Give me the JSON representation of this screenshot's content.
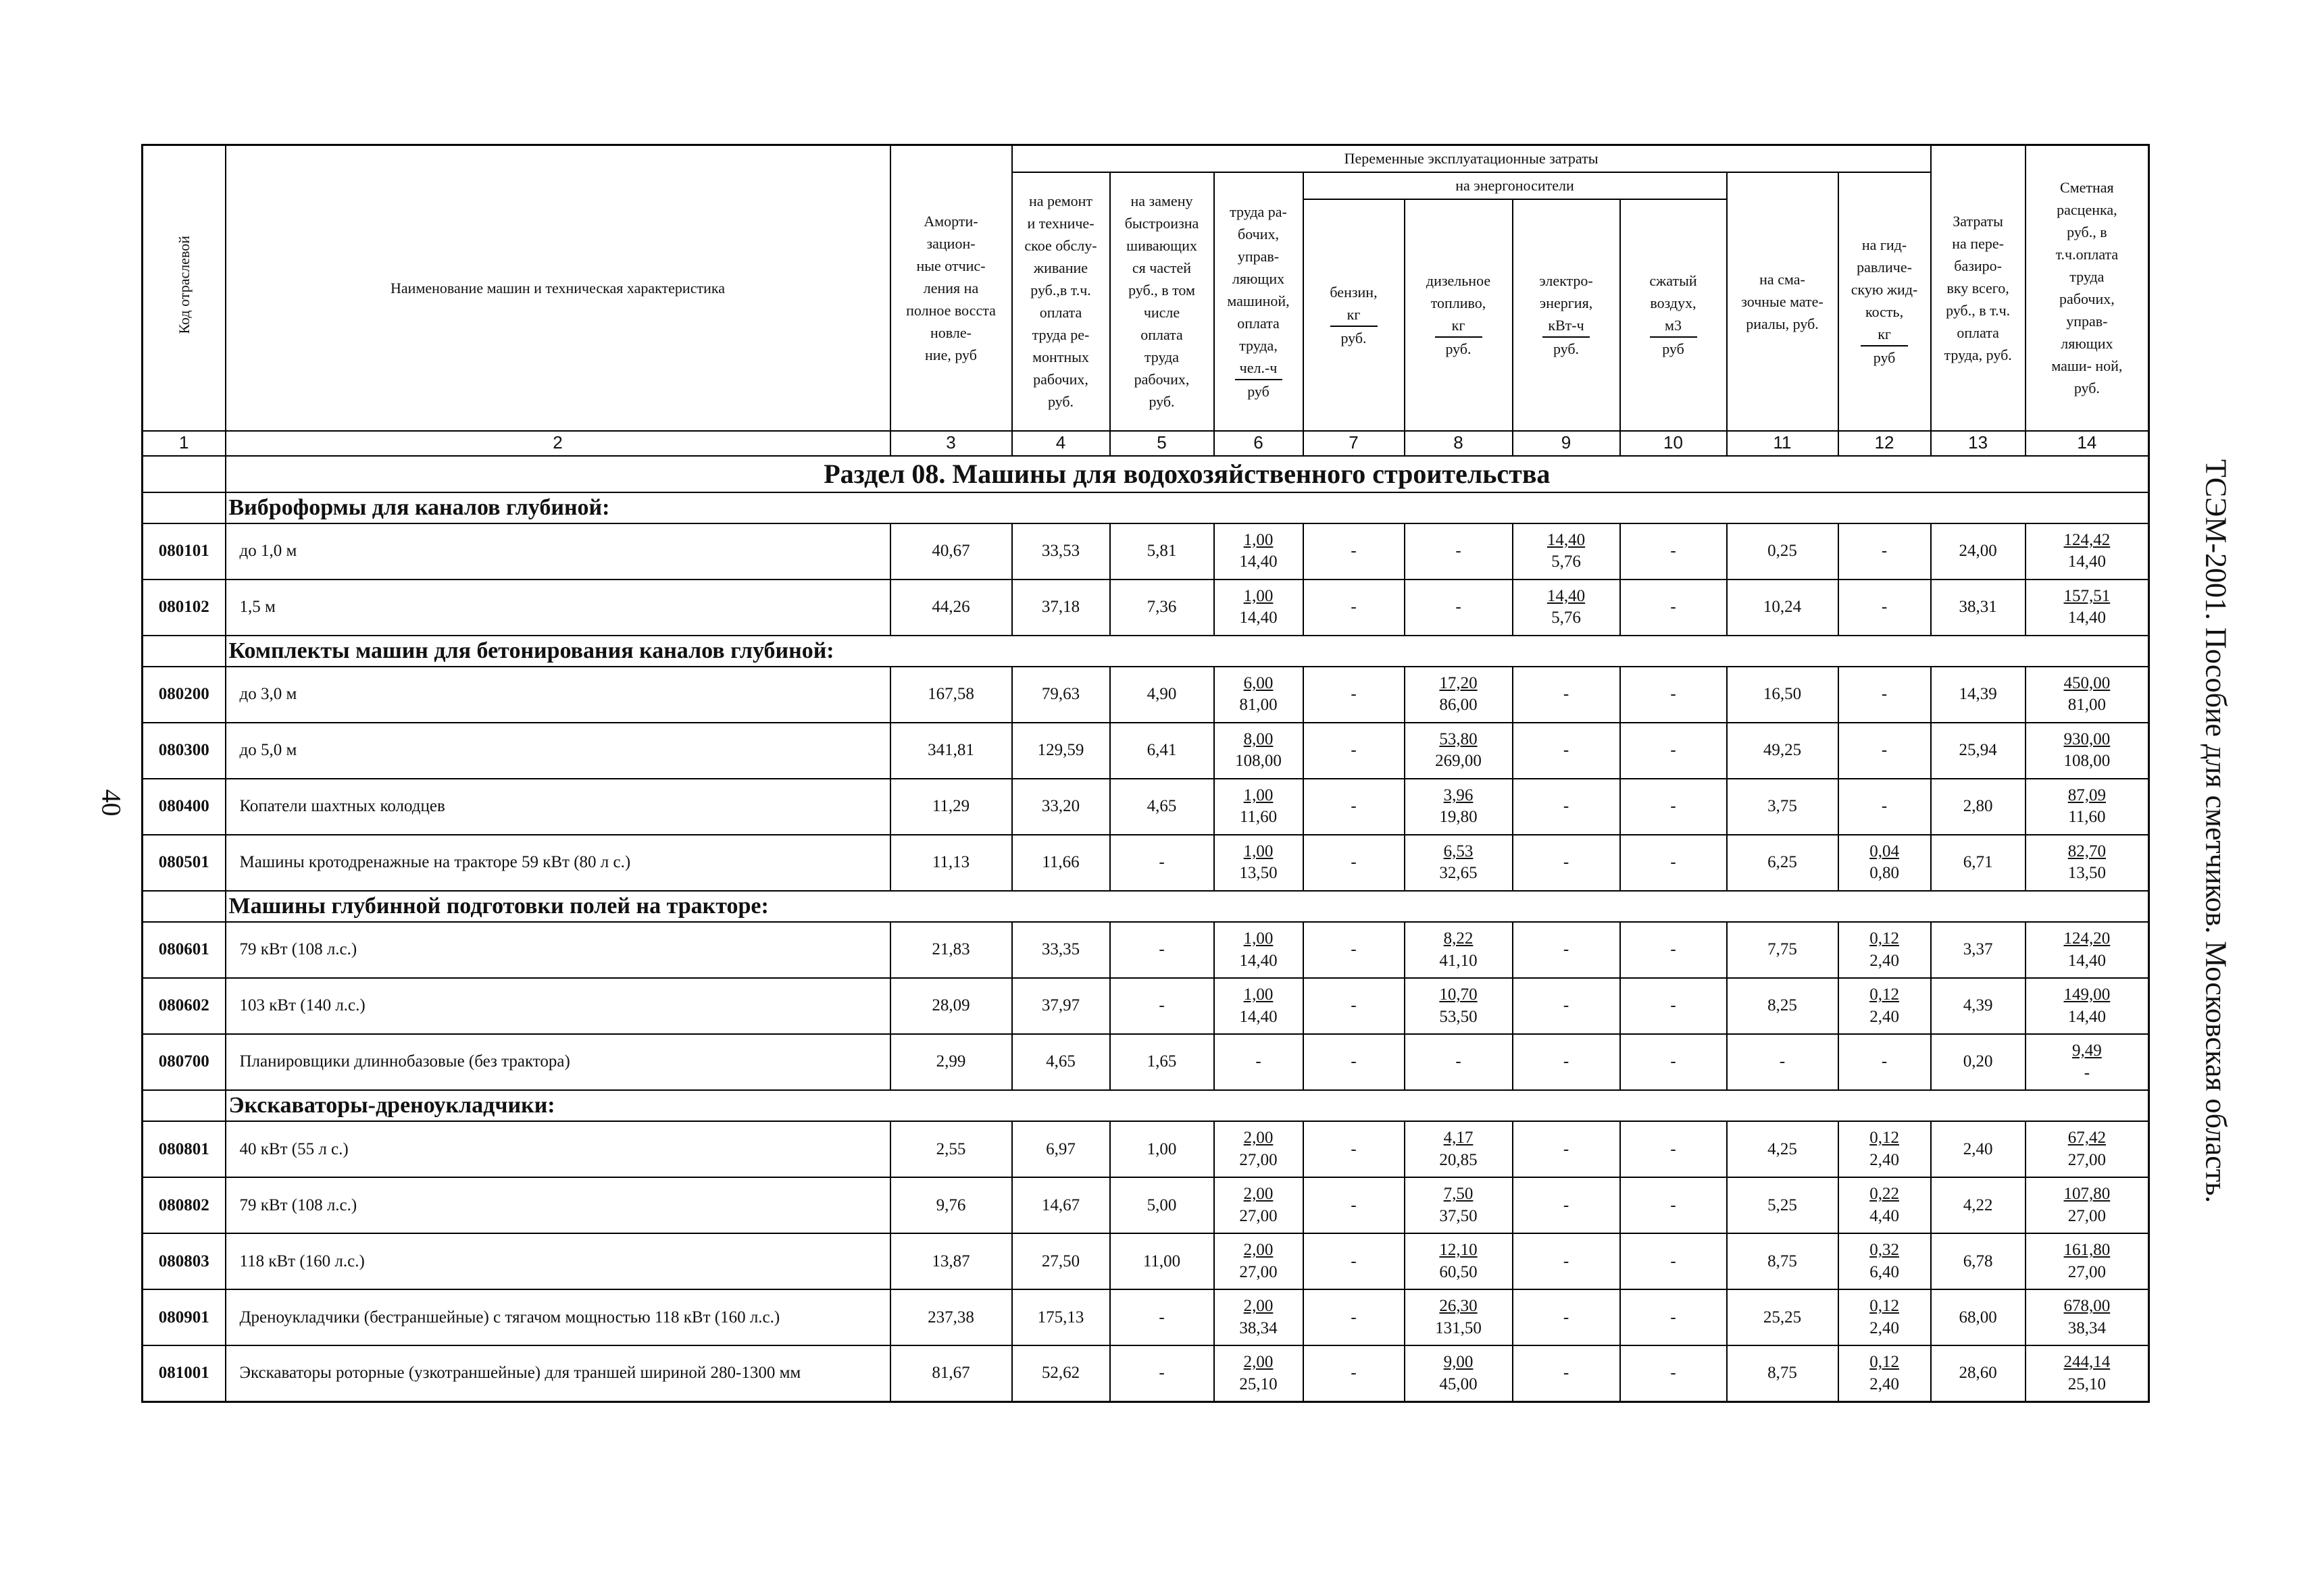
{
  "page_number": "40",
  "side_text": "ТСЭМ-2001. Пособие для сметчиков. Московская область.",
  "table": {
    "header": {
      "code": "Код отраслевой",
      "name": "Наименование машин и техническая характеристика",
      "amortization": "Аморти-\nзацион-\nные отчис-\nления на\nполное восста\nновле-\nние, руб",
      "variable_costs": "Переменные эксплуатационные затраты",
      "repair": "на ремонт\nи техниче-\nское обслу-\nживание\nруб.,в т.ч.\nоплата\nтруда ре-\nмонтных\nрабочих,\nруб.",
      "replacement": "на замену\nбыстроизна\nшивающих\nся частей\nруб., в том\nчисле\nоплата\nтруда\nрабочих,\nруб.",
      "labor": {
        "text": "труда ра-\nбочих,\nуправ-\nляющих\nмашиной,\nоплата\nтруда,",
        "num": "чел.-ч",
        "den": "руб"
      },
      "energy": "на энергоносители",
      "petrol": {
        "text": "бензин,",
        "num": "кг",
        "den": "руб."
      },
      "diesel": {
        "text": "дизельное\nтопливо,",
        "num": "кг",
        "den": "руб."
      },
      "electricity": {
        "text": "электро-\nэнергия,",
        "num": "кВт-ч",
        "den": "руб."
      },
      "air": {
        "text": "сжатый\nвоздух,",
        "num": "м3",
        "den": "руб"
      },
      "lubricants": "на сма-\nзочные мате-\nриалы, руб.",
      "hydraulic": {
        "text": "на гид-\nравличе-\nскую жид-\nкость,",
        "num": "кг",
        "den": "руб"
      },
      "relocation": "Затраты\nна пере-\nбазиро-\nвку всего,\nруб., в т.ч.\nоплата\nтруда, руб.",
      "estimate": "Сметная\nрасценка,\nруб., в\nт.ч.оплата\nтруда\nрабочих,\nуправ-\nляющих\nмаши- ной,\nруб."
    },
    "column_numbers": [
      "1",
      "2",
      "3",
      "4",
      "5",
      "6",
      "7",
      "8",
      "9",
      "10",
      "11",
      "12",
      "13",
      "14"
    ],
    "section_title": "Раздел 08. Машины для водохозяйственного строительства",
    "groups": [
      {
        "title": "Виброформы для каналов глубиной:",
        "items": [
          {
            "code": "080101",
            "name": "до 1,0 м",
            "values": [
              "40,67",
              "33,53",
              "5,81",
              [
                "1,00",
                "14,40"
              ],
              "-",
              "-",
              [
                "14,40",
                "5,76"
              ],
              "-",
              "0,25",
              "-",
              "24,00",
              [
                "124,42",
                "14,40"
              ]
            ]
          },
          {
            "code": "080102",
            "name": "1,5 м",
            "values": [
              "44,26",
              "37,18",
              "7,36",
              [
                "1,00",
                "14,40"
              ],
              "-",
              "-",
              [
                "14,40",
                "5,76"
              ],
              "-",
              "10,24",
              "-",
              "38,31",
              [
                "157,51",
                "14,40"
              ]
            ]
          }
        ]
      },
      {
        "title": "Комплекты машин для бетонирования каналов глубиной:",
        "items": [
          {
            "code": "080200",
            "name": "до 3,0 м",
            "values": [
              "167,58",
              "79,63",
              "4,90",
              [
                "6,00",
                "81,00"
              ],
              "-",
              [
                "17,20",
                "86,00"
              ],
              "-",
              "-",
              "16,50",
              "-",
              "14,39",
              [
                "450,00",
                "81,00"
              ]
            ]
          },
          {
            "code": "080300",
            "name": "до 5,0 м",
            "values": [
              "341,81",
              "129,59",
              "6,41",
              [
                "8,00",
                "108,00"
              ],
              "-",
              [
                "53,80",
                "269,00"
              ],
              "-",
              "-",
              "49,25",
              "-",
              "25,94",
              [
                "930,00",
                "108,00"
              ]
            ]
          },
          {
            "code": "080400",
            "name": "Копатели шахтных колодцев",
            "values": [
              "11,29",
              "33,20",
              "4,65",
              [
                "1,00",
                "11,60"
              ],
              "-",
              [
                "3,96",
                "19,80"
              ],
              "-",
              "-",
              "3,75",
              "-",
              "2,80",
              [
                "87,09",
                "11,60"
              ]
            ]
          },
          {
            "code": "080501",
            "name": "Машины кротодренажные на тракторе 59 кВт (80 л с.)",
            "values": [
              "11,13",
              "11,66",
              "-",
              [
                "1,00",
                "13,50"
              ],
              "-",
              [
                "6,53",
                "32,65"
              ],
              "-",
              "-",
              "6,25",
              [
                "0,04",
                "0,80"
              ],
              "6,71",
              [
                "82,70",
                "13,50"
              ]
            ]
          }
        ]
      },
      {
        "title": "Машины глубинной подготовки полей на тракторе:",
        "items": [
          {
            "code": "080601",
            "name": "79 кВт (108 л.с.)",
            "values": [
              "21,83",
              "33,35",
              "-",
              [
                "1,00",
                "14,40"
              ],
              "-",
              [
                "8,22",
                "41,10"
              ],
              "-",
              "-",
              "7,75",
              [
                "0,12",
                "2,40"
              ],
              "3,37",
              [
                "124,20",
                "14,40"
              ]
            ]
          },
          {
            "code": "080602",
            "name": "103 кВт (140 л.с.)",
            "values": [
              "28,09",
              "37,97",
              "-",
              [
                "1,00",
                "14,40"
              ],
              "-",
              [
                "10,70",
                "53,50"
              ],
              "-",
              "-",
              "8,25",
              [
                "0,12",
                "2,40"
              ],
              "4,39",
              [
                "149,00",
                "14,40"
              ]
            ]
          },
          {
            "code": "080700",
            "name": "Планировщики длиннобазовые (без трактора)",
            "values": [
              "2,99",
              "4,65",
              "1,65",
              "-",
              "-",
              "-",
              "-",
              "-",
              "-",
              "-",
              "0,20",
              [
                "9,49",
                "-"
              ]
            ]
          }
        ]
      },
      {
        "title": "Экскаваторы-дреноукладчики:",
        "items": [
          {
            "code": "080801",
            "name": "40 кВт (55 л с.)",
            "values": [
              "2,55",
              "6,97",
              "1,00",
              [
                "2,00",
                "27,00"
              ],
              "-",
              [
                "4,17",
                "20,85"
              ],
              "-",
              "-",
              "4,25",
              [
                "0,12",
                "2,40"
              ],
              "2,40",
              [
                "67,42",
                "27,00"
              ]
            ]
          },
          {
            "code": "080802",
            "name": "79 кВт (108 л.с.)",
            "values": [
              "9,76",
              "14,67",
              "5,00",
              [
                "2,00",
                "27,00"
              ],
              "-",
              [
                "7,50",
                "37,50"
              ],
              "-",
              "-",
              "5,25",
              [
                "0,22",
                "4,40"
              ],
              "4,22",
              [
                "107,80",
                "27,00"
              ]
            ]
          },
          {
            "code": "080803",
            "name": "118 кВт (160 л.с.)",
            "values": [
              "13,87",
              "27,50",
              "11,00",
              [
                "2,00",
                "27,00"
              ],
              "-",
              [
                "12,10",
                "60,50"
              ],
              "-",
              "-",
              "8,75",
              [
                "0,32",
                "6,40"
              ],
              "6,78",
              [
                "161,80",
                "27,00"
              ]
            ]
          },
          {
            "code": "080901",
            "name": "Дреноукладчики (бестраншейные) с тягачом мощностью 118 кВт (160 л.с.)",
            "values": [
              "237,38",
              "175,13",
              "-",
              [
                "2,00",
                "38,34"
              ],
              "-",
              [
                "26,30",
                "131,50"
              ],
              "-",
              "-",
              "25,25",
              [
                "0,12",
                "2,40"
              ],
              "68,00",
              [
                "678,00",
                "38,34"
              ]
            ]
          },
          {
            "code": "081001",
            "name": "Экскаваторы роторные (узкотраншейные) для траншей шириной 280-1300 мм",
            "values": [
              "81,67",
              "52,62",
              "-",
              [
                "2,00",
                "25,10"
              ],
              "-",
              [
                "9,00",
                "45,00"
              ],
              "-",
              "-",
              "8,75",
              [
                "0,12",
                "2,40"
              ],
              "28,60",
              [
                "244,14",
                "25,10"
              ]
            ]
          }
        ]
      }
    ]
  }
}
